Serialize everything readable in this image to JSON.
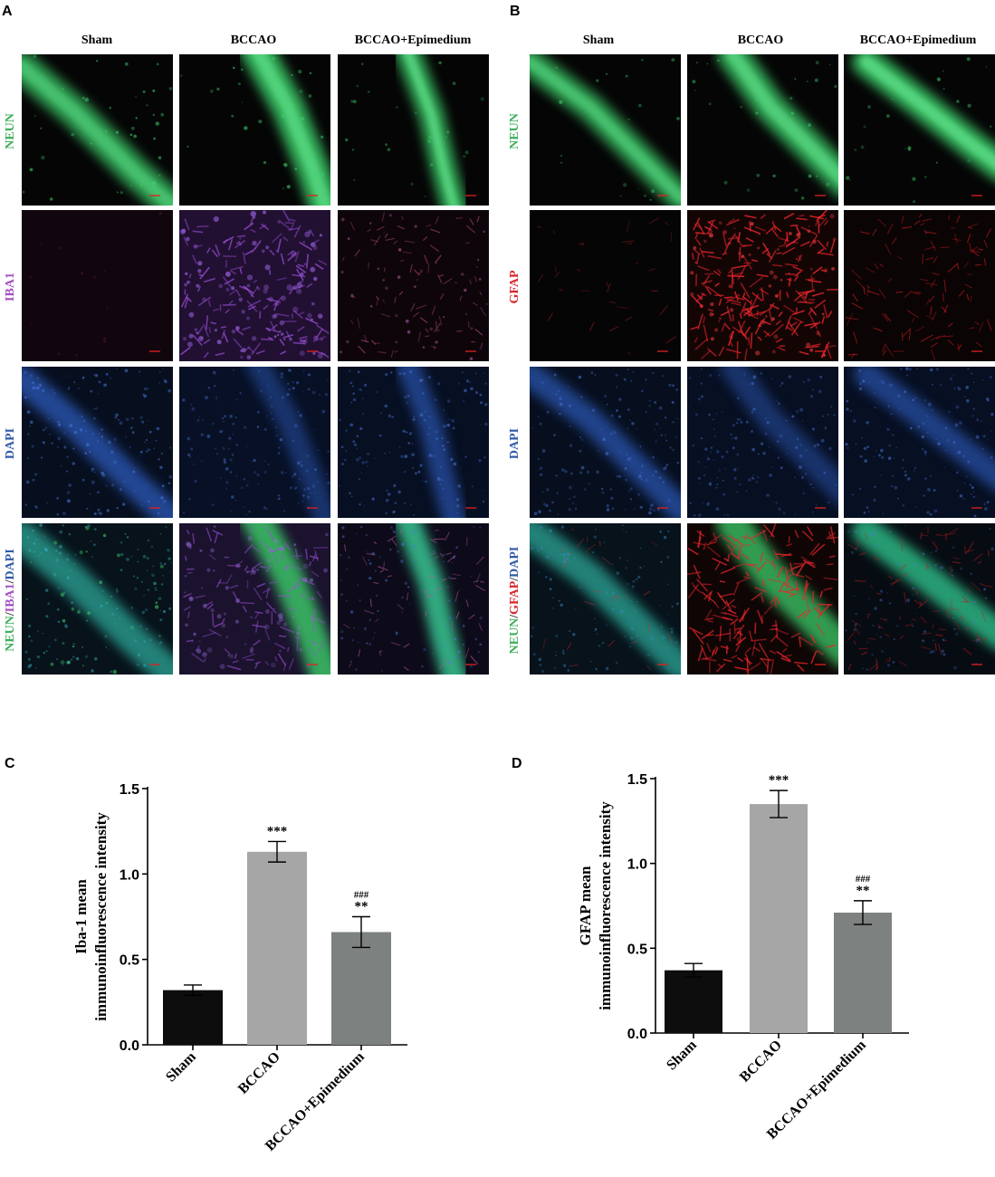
{
  "panel_letters": [
    "A",
    "B",
    "C",
    "D"
  ],
  "groups": [
    "Sham",
    "BCCAO",
    "BCCAO+Epimedium"
  ],
  "panel_a": {
    "rows": [
      {
        "parts": [
          {
            "text": "NEUN",
            "color": "#3fae5c"
          }
        ]
      },
      {
        "parts": [
          {
            "text": "IBA1",
            "color": "#a24fc0"
          }
        ]
      },
      {
        "parts": [
          {
            "text": "DAPI",
            "color": "#2f5aa8"
          }
        ]
      },
      {
        "parts": [
          {
            "text": "NEUN",
            "color": "#3fae5c"
          },
          {
            "text": "/",
            "color": "#3a3a3a"
          },
          {
            "text": "IBA1",
            "color": "#a24fc0"
          },
          {
            "text": "/",
            "color": "#3a3a3a"
          },
          {
            "text": "DAPI",
            "color": "#2f5aa8"
          }
        ]
      }
    ]
  },
  "panel_b": {
    "rows": [
      {
        "parts": [
          {
            "text": "NEUN",
            "color": "#3fae5c"
          }
        ]
      },
      {
        "parts": [
          {
            "text": "GFAP",
            "color": "#d8262c"
          }
        ]
      },
      {
        "parts": [
          {
            "text": "DAPI",
            "color": "#2f5aa8"
          }
        ]
      },
      {
        "parts": [
          {
            "text": "NEUN",
            "color": "#3fae5c"
          },
          {
            "text": "/",
            "color": "#3a3a3a"
          },
          {
            "text": "GFAP",
            "color": "#d8262c"
          },
          {
            "text": "/",
            "color": "#3a3a3a"
          },
          {
            "text": "DAPI",
            "color": "#2f5aa8"
          }
        ]
      }
    ]
  },
  "chart_data": [
    {
      "type": "bar",
      "panel": "C",
      "categories": [
        "Sham",
        "BCCAO",
        "BCCAO+Epimedium"
      ],
      "values": [
        0.32,
        1.13,
        0.66
      ],
      "errors": [
        0.03,
        0.06,
        0.09
      ],
      "annotations": [
        {
          "stars": "",
          "hashes": ""
        },
        {
          "stars": "***",
          "hashes": ""
        },
        {
          "stars": "**",
          "hashes": "###"
        }
      ],
      "bar_colors": [
        "#0d0d0d",
        "#a6a6a6",
        "#7d8180"
      ],
      "ylabel_lines": [
        "Iba-1 mean",
        "immunoinfluorescence intensity"
      ],
      "ylim": [
        0,
        1.5
      ],
      "yticks": [
        "0.0",
        "0.5",
        "1.0",
        "1.5"
      ]
    },
    {
      "type": "bar",
      "panel": "D",
      "categories": [
        "Sham",
        "BCCAO",
        "BCCAO+Epimedium"
      ],
      "values": [
        0.37,
        1.35,
        0.71
      ],
      "errors": [
        0.04,
        0.08,
        0.07
      ],
      "annotations": [
        {
          "stars": "",
          "hashes": ""
        },
        {
          "stars": "***",
          "hashes": ""
        },
        {
          "stars": "**",
          "hashes": "###"
        }
      ],
      "bar_colors": [
        "#0d0d0d",
        "#a6a6a6",
        "#7d8180"
      ],
      "ylabel_lines": [
        "GFAP mean",
        "immunoinfluorescence intensity"
      ],
      "ylim": [
        0,
        1.5
      ],
      "yticks": [
        "0.0",
        "0.5",
        "1.0",
        "1.5"
      ]
    }
  ]
}
